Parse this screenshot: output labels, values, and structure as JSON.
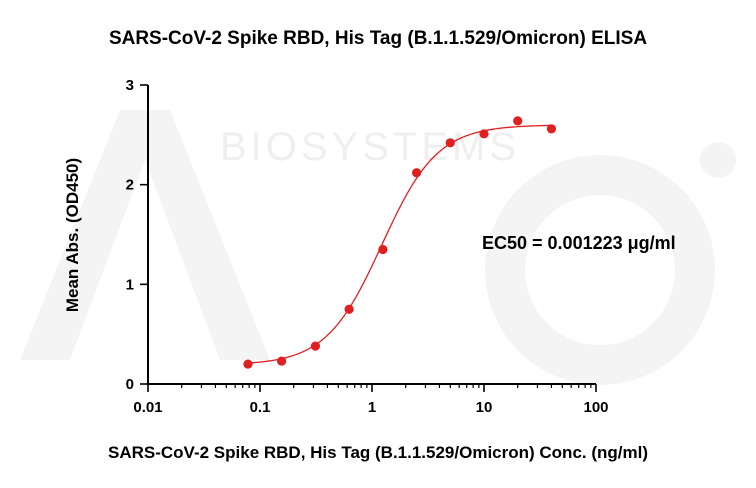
{
  "colors": {
    "series": "#e02020",
    "axis": "#000000",
    "watermark": "#efefef"
  },
  "watermark": {
    "logo_text": "Acro",
    "sub_text": "BIOSYSTEMS"
  },
  "chart_data": {
    "type": "scatter",
    "title": "SARS-CoV-2 Spike RBD, His Tag (B.1.1.529/Omicron) ELISA",
    "xlabel": "SARS-CoV-2 Spike RBD, His Tag (B.1.1.529/Omicron) Conc. (ng/ml)",
    "ylabel": "Mean Abs. (OD450)",
    "xscale": "log",
    "xlim": [
      0.01,
      100
    ],
    "ylim": [
      0,
      3
    ],
    "xticks": [
      0.01,
      0.1,
      1,
      10,
      100
    ],
    "xtick_labels": [
      "0.01",
      "0.1",
      "1",
      "10",
      "100"
    ],
    "yticks": [
      0,
      1,
      2,
      3
    ],
    "ytick_labels": [
      "0",
      "1",
      "2",
      "3"
    ],
    "grid": false,
    "series": [
      {
        "x": [
          0.0781,
          0.156,
          0.3125,
          0.625,
          1.25,
          2.5,
          5,
          10,
          20,
          40
        ],
        "y": [
          0.2,
          0.23,
          0.38,
          0.75,
          1.35,
          2.12,
          2.42,
          2.51,
          2.64,
          2.56
        ],
        "fit": "4PL"
      }
    ],
    "fit_params": {
      "bottom": 0.19,
      "top": 2.6,
      "ec50_ng_ml": 1.223,
      "hill": 1.75
    },
    "annotation": "EC50 = 0.001223 μg/ml"
  }
}
